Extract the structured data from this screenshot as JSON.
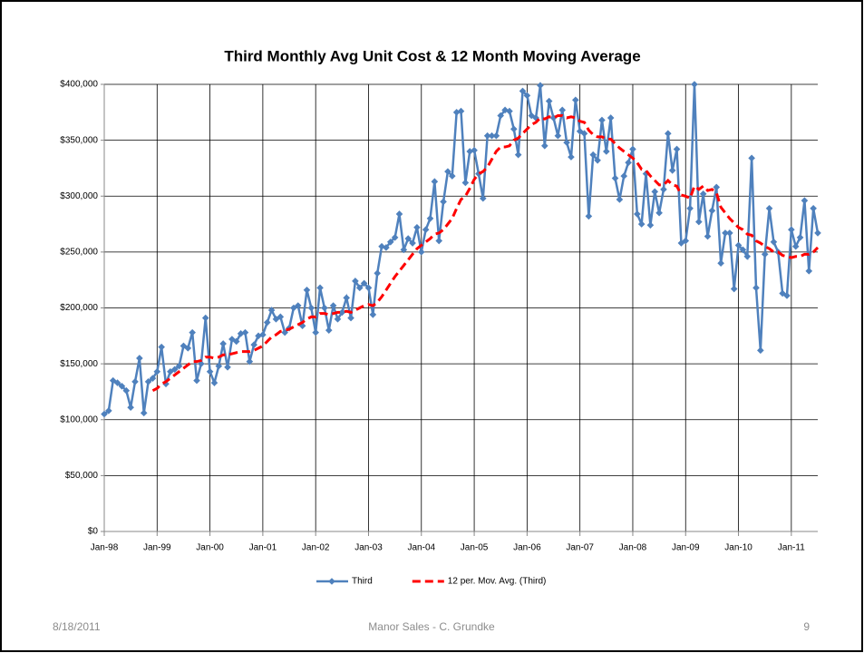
{
  "footer": {
    "date": "8/18/2011",
    "center": "Manor Sales - C. Grundke",
    "page": "9"
  },
  "chart_data": {
    "type": "line",
    "title": "Third Monthly Avg Unit Cost & 12 Month Moving Average",
    "categories": [
      "Jan-98",
      null,
      null,
      null,
      null,
      null,
      null,
      null,
      null,
      null,
      null,
      null,
      "Jan-99",
      null,
      null,
      null,
      null,
      null,
      null,
      null,
      null,
      null,
      null,
      null,
      "Jan-00",
      null,
      null,
      null,
      null,
      null,
      null,
      null,
      null,
      null,
      null,
      null,
      "Jan-01",
      null,
      null,
      null,
      null,
      null,
      null,
      null,
      null,
      null,
      null,
      null,
      "Jan-02",
      null,
      null,
      null,
      null,
      null,
      null,
      null,
      null,
      null,
      null,
      null,
      "Jan-03",
      null,
      null,
      null,
      null,
      null,
      null,
      null,
      null,
      null,
      null,
      null,
      "Jan-04",
      null,
      null,
      null,
      null,
      null,
      null,
      null,
      null,
      null,
      null,
      null,
      "Jan-05",
      null,
      null,
      null,
      null,
      null,
      null,
      null,
      null,
      null,
      null,
      null,
      "Jan-06",
      null,
      null,
      null,
      null,
      null,
      null,
      null,
      null,
      null,
      null,
      null,
      "Jan-07",
      null,
      null,
      null,
      null,
      null,
      null,
      null,
      null,
      null,
      null,
      null,
      "Jan-08",
      null,
      null,
      null,
      null,
      null,
      null,
      null,
      null,
      null,
      null,
      null,
      "Jan-09",
      null,
      null,
      null,
      null,
      null,
      null,
      null,
      null,
      null,
      null,
      null,
      "Jan-10",
      null,
      null,
      null,
      null,
      null,
      null,
      null,
      null,
      null,
      null,
      null,
      "Jan-11",
      null,
      null,
      null,
      null,
      null,
      null
    ],
    "series": [
      {
        "name": "Third",
        "color": "#4f81bd",
        "marker": "diamond",
        "dashed": false,
        "values": [
          105000,
          108000,
          135000,
          133000,
          130000,
          126000,
          111000,
          134000,
          155000,
          106000,
          134000,
          137000,
          143000,
          165000,
          132000,
          143000,
          145000,
          148000,
          166000,
          164000,
          178000,
          135000,
          150000,
          191000,
          143000,
          133000,
          148000,
          168000,
          147000,
          172000,
          170000,
          177000,
          178000,
          152000,
          167000,
          175000,
          176000,
          187000,
          198000,
          190000,
          192000,
          178000,
          182000,
          200000,
          202000,
          184000,
          216000,
          200000,
          178000,
          218000,
          200000,
          180000,
          202000,
          190000,
          196000,
          209000,
          191000,
          224000,
          218000,
          222000,
          218000,
          194000,
          231000,
          255000,
          254000,
          259000,
          263000,
          284000,
          252000,
          262000,
          258000,
          272000,
          250000,
          270000,
          280000,
          313000,
          260000,
          295000,
          322000,
          318000,
          375000,
          376000,
          312000,
          340000,
          341000,
          320000,
          298000,
          354000,
          354000,
          354000,
          372000,
          377000,
          376000,
          360000,
          337000,
          394000,
          390000,
          372000,
          370000,
          399000,
          345000,
          385000,
          370000,
          354000,
          377000,
          348000,
          335000,
          386000,
          358000,
          356000,
          282000,
          337000,
          332000,
          368000,
          340000,
          370000,
          316000,
          297000,
          318000,
          330000,
          342000,
          284000,
          275000,
          320000,
          274000,
          304000,
          285000,
          306000,
          356000,
          323000,
          342000,
          258000,
          260000,
          289000,
          400000,
          277000,
          302000,
          264000,
          287000,
          308000,
          240000,
          267000,
          267000,
          217000,
          256000,
          252000,
          246000,
          334000,
          218000,
          162000,
          248000,
          289000,
          259000,
          250000,
          213000,
          211000,
          270000,
          255000,
          263000,
          296000,
          233000,
          289000,
          267000
        ]
      },
      {
        "name": "12 per. Mov. Avg. (Third)",
        "color": "#ff0000",
        "marker": "none",
        "dashed": true,
        "values": [
          null,
          null,
          null,
          null,
          null,
          null,
          null,
          null,
          null,
          null,
          null,
          126000,
          128000,
          132000,
          134000,
          137000,
          140000,
          143000,
          146000,
          149000,
          152000,
          152000,
          153000,
          156000,
          156000,
          155000,
          156000,
          158000,
          158000,
          159000,
          160000,
          161000,
          161000,
          161000,
          162000,
          164000,
          166000,
          170000,
          174000,
          176000,
          179000,
          180000,
          181000,
          183000,
          185000,
          187000,
          190000,
          192000,
          192000,
          195000,
          195000,
          194000,
          195000,
          196000,
          196000,
          197000,
          196000,
          198000,
          200000,
          202000,
          203000,
          202000,
          205000,
          210000,
          216000,
          222000,
          228000,
          233000,
          238000,
          243000,
          248000,
          253000,
          256000,
          259000,
          262000,
          266000,
          267000,
          270000,
          275000,
          280000,
          289000,
          297000,
          300000,
          307000,
          315000,
          320000,
          322000,
          326000,
          333000,
          340000,
          344000,
          344000,
          345000,
          350000,
          352000,
          356000,
          360000,
          364000,
          366000,
          370000,
          369000,
          371000,
          370000,
          372000,
          372000,
          370000,
          371000,
          370000,
          367000,
          366000,
          359000,
          355000,
          353000,
          353000,
          351000,
          351000,
          347000,
          343000,
          340000,
          337000,
          334000,
          330000,
          324000,
          323000,
          318000,
          314000,
          310000,
          310000,
          314000,
          310000,
          309000,
          301000,
          300000,
          298000,
          309000,
          306000,
          309000,
          305000,
          306000,
          303000,
          290000,
          285000,
          280000,
          276000,
          272000,
          270000,
          266000,
          265000,
          260000,
          258000,
          255000,
          253000,
          250000,
          250000,
          247000,
          246000,
          245000,
          246000,
          246000,
          248000,
          248000,
          250000,
          254000
        ]
      }
    ],
    "ylim": [
      0,
      400000
    ],
    "yticks": [
      {
        "value": 0,
        "label": "$0"
      },
      {
        "value": 50000,
        "label": "$50,000"
      },
      {
        "value": 100000,
        "label": "$100,000"
      },
      {
        "value": 150000,
        "label": "$150,000"
      },
      {
        "value": 200000,
        "label": "$200,000"
      },
      {
        "value": 250000,
        "label": "$250,000"
      },
      {
        "value": 300000,
        "label": "$300,000"
      },
      {
        "value": 350000,
        "label": "$350,000"
      },
      {
        "value": 400000,
        "label": "$400,000"
      }
    ],
    "grid": true,
    "legend": "bottom"
  }
}
